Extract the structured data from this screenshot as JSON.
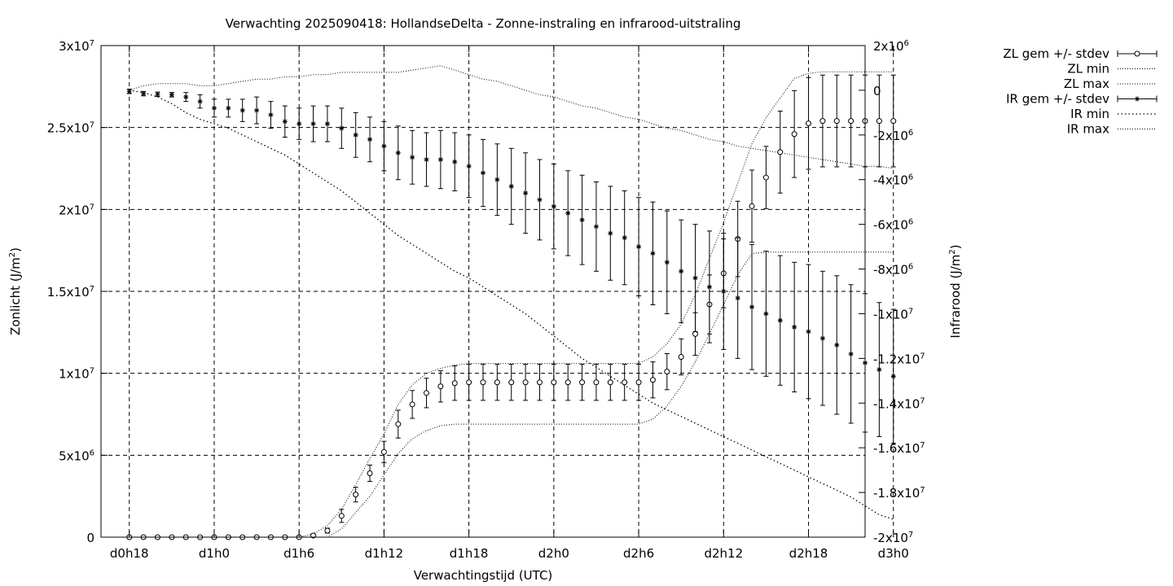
{
  "chart_data": {
    "type": "line",
    "title": "Verwachting 2025090418: HollandseDelta - Zonne-instraling en infrarood-uitstraling",
    "xlabel": "Verwachtingstijd (UTC)",
    "ylabel_left": "Zonlicht (J/m²)",
    "ylabel_left_base": "Zonlicht (J/m",
    "ylabel_right": "Infrarood (J/m²)",
    "ylabel_right_base": "Infrarood (J/m",
    "ylabel_sup": "2",
    "ylabel_close": ")",
    "x_range_hours": [
      16,
      70
    ],
    "y_left_range": [
      0,
      30000000
    ],
    "y_right_range": [
      -20000000,
      2000000
    ],
    "grid": true,
    "legend_placement": "outside-right-top",
    "x_ticks": [
      {
        "label": "d0h18",
        "hour": 18
      },
      {
        "label": "d1h0",
        "hour": 24
      },
      {
        "label": "d1h6",
        "hour": 30
      },
      {
        "label": "d1h12",
        "hour": 36
      },
      {
        "label": "d1h18",
        "hour": 42
      },
      {
        "label": "d2h0",
        "hour": 48
      },
      {
        "label": "d2h6",
        "hour": 54
      },
      {
        "label": "d2h12",
        "hour": 60
      },
      {
        "label": "d2h18",
        "hour": 66
      },
      {
        "label": "d3h0",
        "hour": 72
      }
    ],
    "y_left_ticks": [
      {
        "value": 0,
        "base": "0",
        "exp": ""
      },
      {
        "value": 5000000,
        "base": "5x10",
        "exp": "6"
      },
      {
        "value": 10000000,
        "base": "1x10",
        "exp": "7"
      },
      {
        "value": 15000000,
        "base": "1.5x10",
        "exp": "7"
      },
      {
        "value": 20000000,
        "base": "2x10",
        "exp": "7"
      },
      {
        "value": 25000000,
        "base": "2.5x10",
        "exp": "7"
      },
      {
        "value": 30000000,
        "base": "3x10",
        "exp": "7"
      }
    ],
    "y_right_ticks": [
      {
        "value": 2000000,
        "base": "2x10",
        "exp": "6"
      },
      {
        "value": 0,
        "base": "0",
        "exp": ""
      },
      {
        "value": -2000000,
        "base": "-2x10",
        "exp": "6"
      },
      {
        "value": -4000000,
        "base": "-4x10",
        "exp": "6"
      },
      {
        "value": -6000000,
        "base": "-6x10",
        "exp": "6"
      },
      {
        "value": -8000000,
        "base": "-8x10",
        "exp": "6"
      },
      {
        "value": -10000000,
        "base": "-1x10",
        "exp": "7"
      },
      {
        "value": -12000000,
        "base": "-1.2x10",
        "exp": "7"
      },
      {
        "value": -14000000,
        "base": "-1.4x10",
        "exp": "7"
      },
      {
        "value": -16000000,
        "base": "-1.6x10",
        "exp": "7"
      },
      {
        "value": -18000000,
        "base": "-1.8x10",
        "exp": "7"
      },
      {
        "value": -20000000,
        "base": "-2x10",
        "exp": "7"
      }
    ],
    "legend": [
      {
        "label": "ZL gem +/- stdev",
        "style": "errorbar-circle"
      },
      {
        "label": "ZL min",
        "style": "dotted-fine"
      },
      {
        "label": "ZL max",
        "style": "dotted-fine"
      },
      {
        "label": "IR gem +/- stdev",
        "style": "errorbar-star"
      },
      {
        "label": "IR min",
        "style": "dotted-coarse"
      },
      {
        "label": "IR max",
        "style": "dotted-fine"
      }
    ],
    "x_hours": [
      18,
      19,
      20,
      21,
      22,
      23,
      24,
      25,
      26,
      27,
      28,
      29,
      30,
      31,
      32,
      33,
      34,
      35,
      36,
      37,
      38,
      39,
      40,
      41,
      42,
      43,
      44,
      45,
      46,
      47,
      48,
      49,
      50,
      51,
      52,
      53,
      54,
      55,
      56,
      57,
      58,
      59,
      60,
      61,
      62,
      63,
      64,
      65,
      66,
      67,
      68,
      69,
      70,
      71,
      72
    ],
    "series": [
      {
        "name": "ZL gem +/- stdev",
        "axis": "left",
        "mean": [
          0,
          0,
          0,
          0,
          0,
          0,
          0,
          0,
          0,
          0,
          0,
          0,
          0,
          100000,
          400000,
          1300000,
          2600000,
          3900000,
          5200000,
          6900000,
          8100000,
          8800000,
          9200000,
          9400000,
          9450000,
          9450000,
          9450000,
          9450000,
          9450000,
          9450000,
          9450000,
          9450000,
          9450000,
          9450000,
          9450000,
          9450000,
          9450000,
          9600000,
          10100000,
          11000000,
          12400000,
          14200000,
          16100000,
          18200000,
          20200000,
          21950000,
          23500000,
          24600000,
          25250000,
          25400000,
          25400000,
          25400000,
          25400000,
          25400000,
          25400000
        ],
        "stdev": [
          0,
          0,
          0,
          0,
          0,
          0,
          0,
          0,
          0,
          0,
          0,
          0,
          0,
          100000,
          150000,
          400000,
          450000,
          500000,
          650000,
          850000,
          850000,
          900000,
          950000,
          1050000,
          1100000,
          1100000,
          1100000,
          1100000,
          1100000,
          1100000,
          1100000,
          1100000,
          1100000,
          1100000,
          1100000,
          1100000,
          1100000,
          1100000,
          1100000,
          1100000,
          1300000,
          1800000,
          2100000,
          2300000,
          2200000,
          1900000,
          2500000,
          2650000,
          2800000,
          2800000,
          2800000,
          2800000,
          2800000,
          2800000,
          2800000
        ]
      },
      {
        "name": "ZL min",
        "axis": "left",
        "values": [
          0,
          0,
          0,
          0,
          0,
          0,
          0,
          0,
          0,
          0,
          0,
          0,
          0,
          0,
          0,
          500000,
          1500000,
          2500000,
          3800000,
          5100000,
          6000000,
          6500000,
          6800000,
          6900000,
          6900000,
          6900000,
          6900000,
          6900000,
          6900000,
          6900000,
          6900000,
          6900000,
          6900000,
          6900000,
          6900000,
          6900000,
          6900000,
          7200000,
          8000000,
          9200000,
          10700000,
          12400000,
          14200000,
          16000000,
          17300000,
          17400000,
          17400000,
          17400000,
          17400000,
          17400000,
          17400000,
          17400000,
          17400000,
          17400000,
          17400000
        ]
      },
      {
        "name": "ZL max",
        "axis": "left",
        "values": [
          0,
          0,
          0,
          0,
          0,
          0,
          0,
          0,
          0,
          0,
          0,
          0,
          0,
          200000,
          700000,
          1700000,
          3200000,
          4800000,
          6300000,
          8100000,
          9300000,
          10000000,
          10300000,
          10500000,
          10600000,
          10600000,
          10600000,
          10600000,
          10600000,
          10600000,
          10600000,
          10600000,
          10600000,
          10600000,
          10600000,
          10600000,
          10600000,
          11000000,
          11800000,
          13000000,
          14800000,
          17000000,
          19200000,
          21600000,
          24000000,
          25600000,
          26800000,
          28000000,
          28300000,
          28400000,
          28400000,
          28400000,
          28400000,
          28400000,
          28400000
        ]
      },
      {
        "name": "IR gem +/- stdev",
        "axis": "right",
        "mean": [
          -50000,
          -150000,
          -180000,
          -200000,
          -300000,
          -500000,
          -800000,
          -800000,
          -900000,
          -900000,
          -1100000,
          -1400000,
          -1500000,
          -1500000,
          -1500000,
          -1700000,
          -2000000,
          -2200000,
          -2500000,
          -2800000,
          -3000000,
          -3100000,
          -3100000,
          -3200000,
          -3400000,
          -3700000,
          -4000000,
          -4300000,
          -4600000,
          -4900000,
          -5200000,
          -5500000,
          -5800000,
          -6100000,
          -6400000,
          -6600000,
          -7000000,
          -7300000,
          -7700000,
          -8100000,
          -8400000,
          -8800000,
          -9000000,
          -9300000,
          -9700000,
          -10000000,
          -10300000,
          -10600000,
          -10800000,
          -11100000,
          -11400000,
          -11800000,
          -12200000,
          -12500000,
          -12800000
        ],
        "stdev": [
          100000,
          100000,
          100000,
          100000,
          200000,
          300000,
          400000,
          400000,
          500000,
          600000,
          600000,
          700000,
          700000,
          800000,
          800000,
          900000,
          1000000,
          1000000,
          1100000,
          1200000,
          1200000,
          1200000,
          1300000,
          1300000,
          1400000,
          1500000,
          1600000,
          1700000,
          1800000,
          1800000,
          1900000,
          1900000,
          2000000,
          2000000,
          2100000,
          2100000,
          2200000,
          2300000,
          2300000,
          2300000,
          2400000,
          2500000,
          2600000,
          2700000,
          2800000,
          2800000,
          2900000,
          2900000,
          3000000,
          3000000,
          3100000,
          3100000,
          3100000,
          3000000,
          3000000
        ]
      },
      {
        "name": "IR min",
        "axis": "right",
        "values": [
          0,
          -100000,
          -300000,
          -600000,
          -1000000,
          -1300000,
          -1500000,
          -1700000,
          -2000000,
          -2300000,
          -2600000,
          -2900000,
          -3300000,
          -3700000,
          -4100000,
          -4500000,
          -5000000,
          -5500000,
          -6000000,
          -6500000,
          -6900000,
          -7300000,
          -7700000,
          -8100000,
          -8400000,
          -8800000,
          -9200000,
          -9600000,
          -10000000,
          -10500000,
          -11000000,
          -11500000,
          -12000000,
          -12400000,
          -12800000,
          -13200000,
          -13600000,
          -14000000,
          -14300000,
          -14600000,
          -14900000,
          -15200000,
          -15500000,
          -15800000,
          -16100000,
          -16400000,
          -16700000,
          -17000000,
          -17300000,
          -17600000,
          -17900000,
          -18200000,
          -18600000,
          -19000000,
          -19200000
        ]
      },
      {
        "name": "IR max",
        "axis": "right",
        "values": [
          0,
          200000,
          300000,
          300000,
          300000,
          200000,
          200000,
          300000,
          400000,
          500000,
          500000,
          600000,
          600000,
          700000,
          700000,
          800000,
          800000,
          800000,
          800000,
          800000,
          900000,
          1000000,
          1100000,
          900000,
          700000,
          500000,
          400000,
          200000,
          0,
          -200000,
          -300000,
          -500000,
          -700000,
          -800000,
          -1000000,
          -1200000,
          -1300000,
          -1500000,
          -1700000,
          -1800000,
          -2000000,
          -2200000,
          -2300000,
          -2500000,
          -2600000,
          -2700000,
          -2800000,
          -2900000,
          -3000000,
          -3100000,
          -3200000,
          -3300000,
          -3400000,
          -3400000,
          -3500000
        ]
      }
    ]
  }
}
